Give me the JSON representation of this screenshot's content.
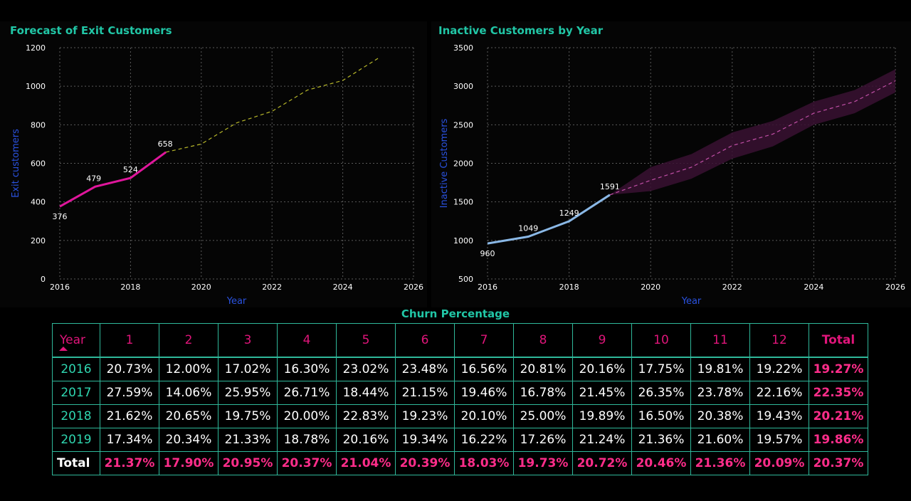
{
  "chart_data": [
    {
      "type": "line",
      "title": "Forecast of Exit Customers",
      "xlabel": "Year",
      "ylabel": "Exit customers",
      "xlim": [
        2016,
        2026
      ],
      "ylim": [
        0,
        1200
      ],
      "x_ticks": [
        "2016",
        "2018",
        "2020",
        "2022",
        "2024",
        "2026"
      ],
      "y_ticks": [
        "0",
        "200",
        "400",
        "600",
        "800",
        "1000",
        "1200"
      ],
      "grid": true,
      "series": [
        {
          "style": "solid",
          "color": "#e0169c",
          "x": [
            2016,
            2017,
            2018,
            2019
          ],
          "values": [
            376,
            479,
            524,
            658
          ],
          "data_labels": [
            "376",
            "479",
            "524",
            "658"
          ]
        },
        {
          "style": "dashed",
          "color": "#b8b82a",
          "x": [
            2019,
            2020,
            2021,
            2022,
            2023,
            2024,
            2025
          ],
          "values": [
            658,
            700,
            810,
            870,
            980,
            1030,
            1145
          ]
        }
      ]
    },
    {
      "type": "line",
      "title": "Inactive Customers by Year",
      "xlabel": "Year",
      "ylabel": "Inactive Customers",
      "xlim": [
        2016,
        2026
      ],
      "ylim": [
        500,
        3500
      ],
      "x_ticks": [
        "2016",
        "2018",
        "2020",
        "2022",
        "2024",
        "2026"
      ],
      "y_ticks": [
        "500",
        "1000",
        "1500",
        "2000",
        "2500",
        "3000",
        "3500"
      ],
      "grid": true,
      "series": [
        {
          "style": "solid",
          "color": "#8ab8e6",
          "x": [
            2016,
            2017,
            2018,
            2019
          ],
          "values": [
            960,
            1049,
            1249,
            1591
          ],
          "data_labels": [
            "960",
            "1049",
            "1249",
            "1591"
          ]
        },
        {
          "style": "dashed",
          "color": "#c04fa6",
          "x": [
            2019,
            2020,
            2021,
            2022,
            2023,
            2024,
            2025,
            2026
          ],
          "values": [
            1591,
            1780,
            1950,
            2230,
            2380,
            2650,
            2800,
            3070
          ],
          "band_upper": [
            1591,
            1950,
            2120,
            2400,
            2550,
            2800,
            2950,
            3220
          ],
          "band_lower": [
            1591,
            1640,
            1800,
            2060,
            2220,
            2500,
            2650,
            2920
          ]
        }
      ]
    }
  ],
  "table": {
    "title": "Churn Percentage",
    "headers": [
      "Year",
      "1",
      "2",
      "3",
      "4",
      "5",
      "6",
      "7",
      "8",
      "9",
      "10",
      "11",
      "12",
      "Total"
    ],
    "rows": [
      {
        "year": "2016",
        "values": [
          "20.73%",
          "12.00%",
          "17.02%",
          "16.30%",
          "23.02%",
          "23.48%",
          "16.56%",
          "20.81%",
          "20.16%",
          "17.75%",
          "19.81%",
          "19.22%"
        ],
        "total": "19.27%"
      },
      {
        "year": "2017",
        "values": [
          "27.59%",
          "14.06%",
          "25.95%",
          "26.71%",
          "18.44%",
          "21.15%",
          "19.46%",
          "16.78%",
          "21.45%",
          "26.35%",
          "23.78%",
          "22.16%"
        ],
        "total": "22.35%"
      },
      {
        "year": "2018",
        "values": [
          "21.62%",
          "20.65%",
          "19.75%",
          "20.00%",
          "22.83%",
          "19.23%",
          "20.10%",
          "25.00%",
          "19.89%",
          "16.50%",
          "20.38%",
          "19.43%"
        ],
        "total": "20.21%"
      },
      {
        "year": "2019",
        "values": [
          "17.34%",
          "20.34%",
          "21.33%",
          "18.78%",
          "20.16%",
          "19.34%",
          "16.22%",
          "17.26%",
          "21.24%",
          "21.36%",
          "21.60%",
          "19.57%"
        ],
        "total": "19.86%"
      }
    ],
    "total_row": {
      "label": "Total",
      "values": [
        "21.37%",
        "17.90%",
        "20.95%",
        "20.37%",
        "21.04%",
        "20.39%",
        "18.03%",
        "19.73%",
        "20.72%",
        "20.46%",
        "21.36%",
        "20.09%"
      ],
      "total": "20.37%"
    }
  }
}
